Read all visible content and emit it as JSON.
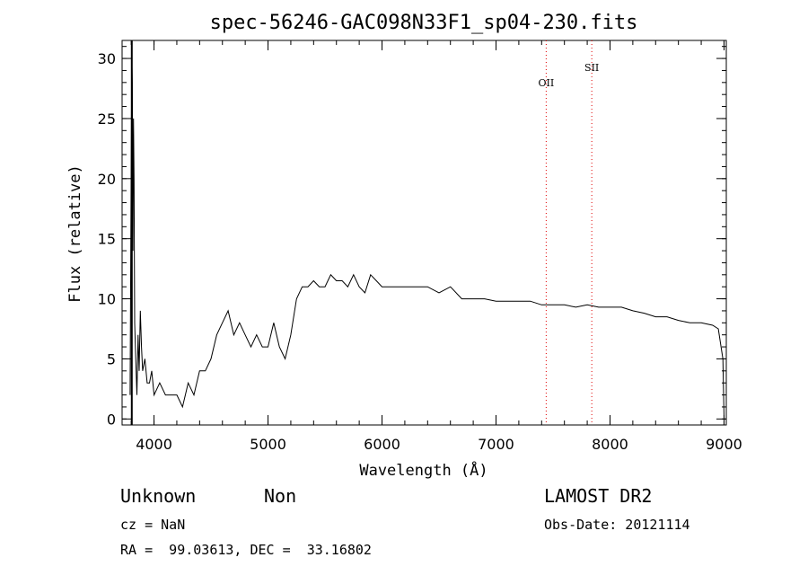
{
  "chart_data": {
    "type": "line",
    "title": "spec-56246-GAC098N33F1_sp04-230.fits",
    "xlabel": "Wavelength (Å)",
    "ylabel": "Flux (relative)",
    "xlim": [
      3720,
      9020
    ],
    "ylim": [
      -0.5,
      31.5
    ],
    "x_ticks": [
      4000,
      5000,
      6000,
      7000,
      8000,
      9000
    ],
    "y_ticks": [
      0,
      5,
      10,
      15,
      20,
      25,
      30
    ],
    "grid": false,
    "marker_line": {
      "x": 3805
    },
    "spectral_lines": [
      {
        "name": "OII",
        "x": 7440
      },
      {
        "name": "SII",
        "x": 7840
      }
    ],
    "series": [
      {
        "color": "#000000",
        "x": [
          3790,
          3800,
          3805,
          3810,
          3815,
          3820,
          3825,
          3830,
          3840,
          3850,
          3860,
          3870,
          3880,
          3890,
          3900,
          3920,
          3940,
          3960,
          3980,
          4000,
          4050,
          4100,
          4150,
          4200,
          4250,
          4300,
          4350,
          4400,
          4450,
          4500,
          4550,
          4600,
          4650,
          4700,
          4750,
          4800,
          4850,
          4900,
          4950,
          5000,
          5050,
          5100,
          5150,
          5200,
          5250,
          5300,
          5350,
          5400,
          5450,
          5500,
          5550,
          5600,
          5650,
          5700,
          5750,
          5800,
          5850,
          5900,
          5950,
          6000,
          6100,
          6200,
          6300,
          6400,
          6500,
          6600,
          6700,
          6800,
          6900,
          7000,
          7100,
          7200,
          7300,
          7400,
          7500,
          7600,
          7700,
          7800,
          7900,
          8000,
          8100,
          8200,
          8300,
          8400,
          8500,
          8600,
          8700,
          8800,
          8900,
          8950,
          8990,
          9000
        ],
        "y": [
          2,
          22,
          30,
          28,
          14,
          25,
          20,
          8,
          5,
          2,
          7,
          4,
          9,
          6,
          4,
          5,
          3,
          3,
          4,
          2,
          3,
          2,
          2,
          2,
          1,
          3,
          2,
          4,
          4,
          5,
          7,
          8,
          9,
          7,
          8,
          7,
          6,
          7,
          6,
          6,
          8,
          6,
          5,
          7,
          10,
          11,
          11,
          11.5,
          11,
          11,
          12,
          11.5,
          11.5,
          11,
          12,
          11,
          10.5,
          12,
          11.5,
          11,
          11,
          11,
          11,
          11,
          10.5,
          11,
          10,
          10,
          10,
          9.8,
          9.8,
          9.8,
          9.8,
          9.5,
          9.5,
          9.5,
          9.3,
          9.5,
          9.3,
          9.3,
          9.3,
          9,
          8.8,
          8.5,
          8.5,
          8.2,
          8,
          8,
          7.8,
          7.5,
          5,
          0
        ]
      }
    ]
  },
  "info": {
    "class": "Unknown",
    "subclass": "Non",
    "cz": "cz = NaN",
    "coords": "RA =  99.03613, DEC =  33.16802",
    "survey": "LAMOST DR2",
    "obs_date": "Obs-Date: 20121114"
  }
}
